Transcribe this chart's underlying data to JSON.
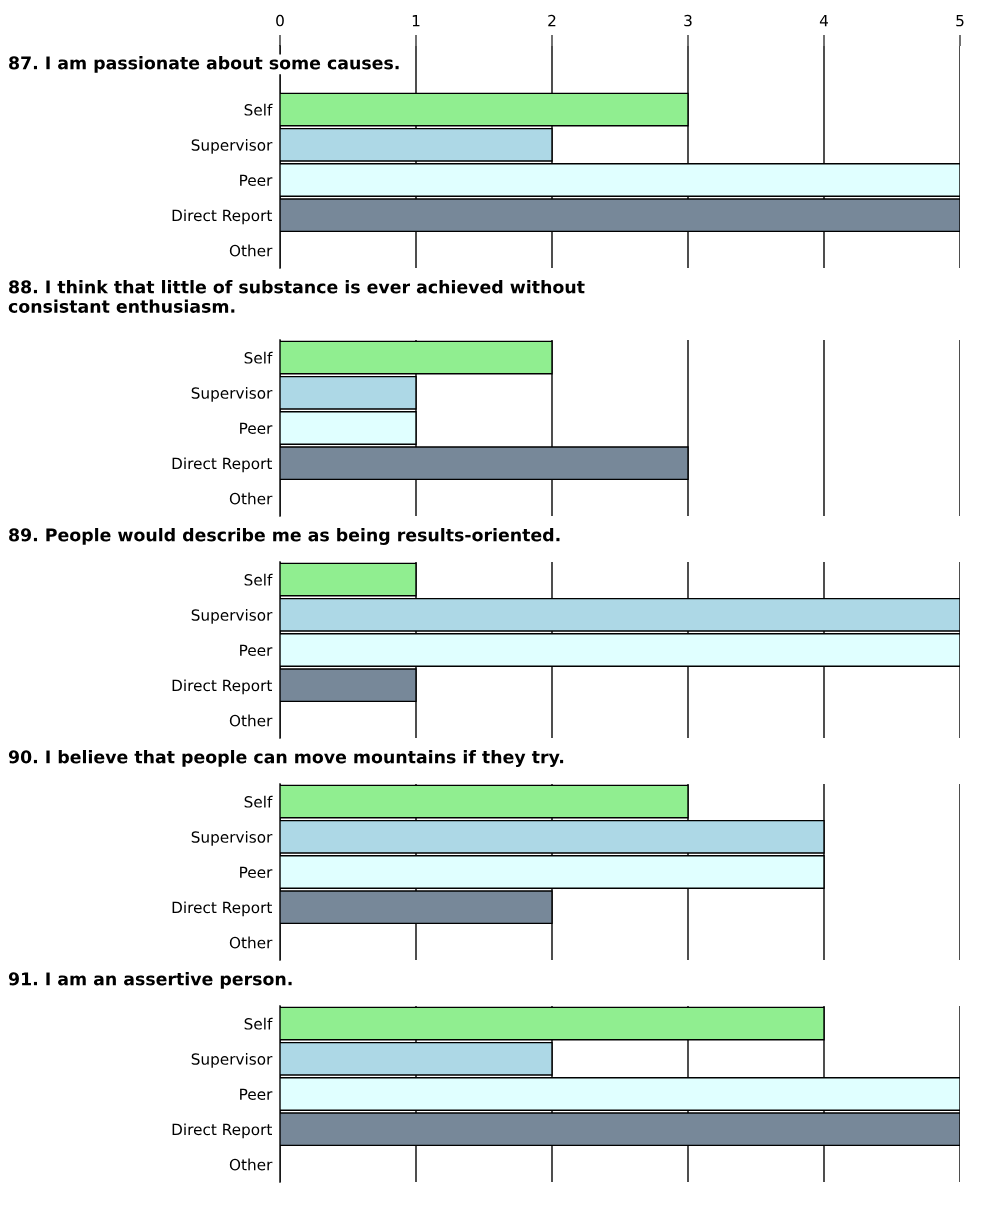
{
  "chart_data": [
    {
      "type": "bar",
      "orientation": "horizontal",
      "title": "87. I am passionate about some causes.",
      "categories": [
        "Self",
        "Supervisor",
        "Peer",
        "Direct Report",
        "Other"
      ],
      "values": [
        3,
        2,
        5,
        5,
        null
      ],
      "colors": [
        "#90ee90",
        "#add8e6",
        "#e0ffff",
        "#778899",
        "#778899"
      ],
      "xlim": [
        0,
        5
      ],
      "xticks": [
        0,
        1,
        2,
        3,
        4,
        5
      ],
      "grid": "x"
    },
    {
      "type": "bar",
      "orientation": "horizontal",
      "title": "88. I think that little of substance is ever achieved without\nconsistant enthusiasm.",
      "categories": [
        "Self",
        "Supervisor",
        "Peer",
        "Direct Report",
        "Other"
      ],
      "values": [
        2,
        1,
        1,
        3,
        null
      ],
      "colors": [
        "#90ee90",
        "#add8e6",
        "#e0ffff",
        "#778899",
        "#778899"
      ],
      "xlim": [
        0,
        5
      ],
      "xticks": [
        0,
        1,
        2,
        3,
        4,
        5
      ],
      "grid": "x",
      "tick_labels": "y"
    },
    {
      "type": "bar",
      "orientation": "horizontal",
      "title": "89. People would describe me as being results-oriented.",
      "categories": [
        "Self",
        "Supervisor",
        "Peer",
        "Direct Report",
        "Other"
      ],
      "values": [
        1,
        5,
        5,
        1,
        null
      ],
      "colors": [
        "#90ee90",
        "#add8e6",
        "#e0ffff",
        "#778899",
        "#778899"
      ],
      "xlim": [
        0,
        5
      ],
      "xticks": [
        0,
        1,
        2,
        3,
        4,
        5
      ],
      "grid": "x",
      "tick_labels": "y"
    },
    {
      "type": "bar",
      "orientation": "horizontal",
      "title": "90. I believe that people can move mountains if they try.",
      "categories": [
        "Self",
        "Supervisor",
        "Peer",
        "Direct Report",
        "Other"
      ],
      "values": [
        3,
        4,
        4,
        2,
        null
      ],
      "colors": [
        "#90ee90",
        "#add8e6",
        "#e0ffff",
        "#778899",
        "#778899"
      ],
      "xlim": [
        0,
        5
      ],
      "xticks": [
        0,
        1,
        2,
        3,
        4,
        5
      ],
      "grid": "x",
      "tick_labels": "y"
    },
    {
      "type": "bar",
      "orientation": "horizontal",
      "title": "91. I am an assertive person.",
      "categories": [
        "Self",
        "Supervisor",
        "Peer",
        "Direct Report",
        "Other"
      ],
      "values": [
        4,
        2,
        5,
        5,
        null
      ],
      "colors": [
        "#90ee90",
        "#add8e6",
        "#e0ffff",
        "#778899",
        "#778899"
      ],
      "xlim": [
        0,
        5
      ],
      "xticks": [
        0,
        1,
        2,
        3,
        4,
        5
      ],
      "grid": "x",
      "tick_labels": "y"
    }
  ]
}
